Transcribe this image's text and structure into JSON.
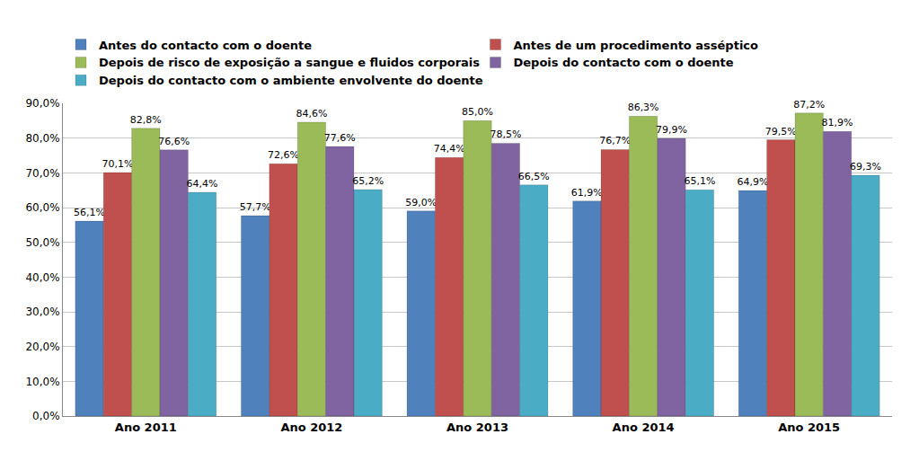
{
  "chart_data": {
    "type": "bar",
    "categories": [
      "Ano 2011",
      "Ano 2012",
      "Ano 2013",
      "Ano 2014",
      "Ano 2015"
    ],
    "series": [
      {
        "name": "Antes do contacto com o doente",
        "color": "#4f81bd",
        "values": [
          56.1,
          57.7,
          59.0,
          61.9,
          64.9
        ],
        "value_labels": [
          "56,1%",
          "57,7%",
          "59,0%",
          "61,9%",
          "64,9%"
        ]
      },
      {
        "name": "Antes de um procedimento asséptico",
        "color": "#c0504d",
        "values": [
          70.1,
          72.6,
          74.4,
          76.7,
          79.5
        ],
        "value_labels": [
          "70,1%",
          "72,6%",
          "74,4%",
          "76,7%",
          "79,5%"
        ]
      },
      {
        "name": "Depois de risco de exposição a sangue e fluidos corporais",
        "color": "#9bbb59",
        "values": [
          82.8,
          84.6,
          85.0,
          86.3,
          87.2
        ],
        "value_labels": [
          "82,8%",
          "84,6%",
          "85,0%",
          "86,3%",
          "87,2%"
        ]
      },
      {
        "name": "Depois do contacto com o doente",
        "color": "#8064a2",
        "values": [
          76.6,
          77.6,
          78.5,
          79.9,
          81.9
        ],
        "value_labels": [
          "76,6%",
          "77,6%",
          "78,5%",
          "79,9%",
          "81,9%"
        ]
      },
      {
        "name": "Depois do contacto com o ambiente envolvente do doente",
        "color": "#4bacc6",
        "values": [
          64.4,
          65.2,
          66.5,
          65.1,
          69.3
        ],
        "value_labels": [
          "64,4%",
          "65,2%",
          "66,5%",
          "65,1%",
          "69,3%"
        ]
      }
    ],
    "ylim": [
      0,
      90
    ],
    "yticks": [
      {
        "value": 0,
        "label": "0,0%"
      },
      {
        "value": 10,
        "label": "10,0%"
      },
      {
        "value": 20,
        "label": "20,0%"
      },
      {
        "value": 30,
        "label": "30,0%"
      },
      {
        "value": 40,
        "label": "40,0%"
      },
      {
        "value": 50,
        "label": "50,0%"
      },
      {
        "value": 60,
        "label": "60,0%"
      },
      {
        "value": 70,
        "label": "70,0%"
      },
      {
        "value": 80,
        "label": "80,0%"
      },
      {
        "value": 90,
        "label": "90,0%"
      }
    ],
    "grid": true,
    "legend": "top",
    "data_labels": true
  }
}
